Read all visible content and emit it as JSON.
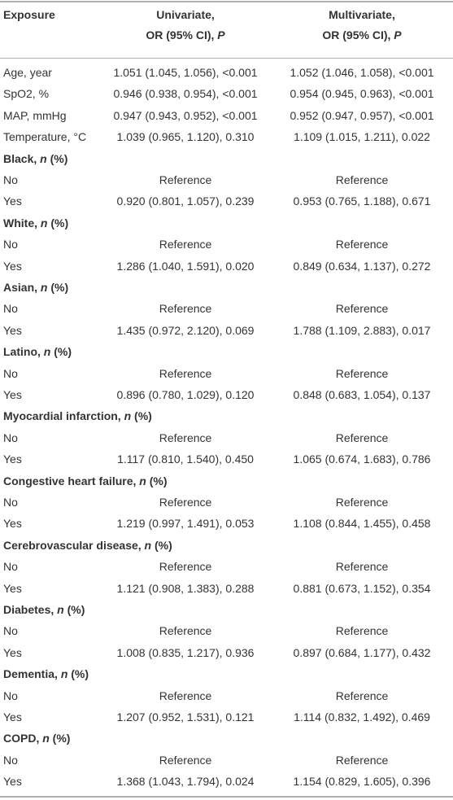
{
  "table": {
    "header": [
      {
        "lines": [
          [
            "Exposure"
          ]
        ]
      },
      {
        "lines": [
          [
            "Univariate,"
          ],
          [
            "OR (95% CI), ",
            "P"
          ]
        ]
      },
      {
        "lines": [
          [
            "Multivariate,"
          ],
          [
            "OR (95% CI), ",
            "P"
          ]
        ]
      }
    ],
    "rows": [
      {
        "label": "Age, year",
        "cells": [
          "1.051 (1.045, 1.056), <0.001",
          "1.052 (1.046, 1.058), <0.001"
        ]
      },
      {
        "label": "SpO2, %",
        "cells": [
          "0.946 (0.938, 0.954), <0.001",
          "0.954 (0.945, 0.963), <0.001"
        ]
      },
      {
        "label": "MAP, mmHg",
        "cells": [
          "0.947 (0.943, 0.952), <0.001",
          "0.952 (0.947, 0.957), <0.001"
        ]
      },
      {
        "label": "Temperature, °C",
        "cells": [
          "1.039 (0.965, 1.120), 0.310",
          "1.109 (1.015, 1.211), 0.022"
        ]
      },
      {
        "label_parts": [
          "Black, ",
          "n",
          " (%)"
        ]
      },
      {
        "label": "No",
        "cells": [
          "Reference",
          "Reference"
        ]
      },
      {
        "label": "Yes",
        "cells": [
          "0.920 (0.801, 1.057), 0.239",
          "0.953 (0.765, 1.188), 0.671"
        ]
      },
      {
        "label_parts": [
          "White, ",
          "n",
          " (%)"
        ]
      },
      {
        "label": "No",
        "cells": [
          "Reference",
          "Reference"
        ]
      },
      {
        "label": "Yes",
        "cells": [
          "1.286 (1.040, 1.591), 0.020",
          "0.849 (0.634, 1.137), 0.272"
        ]
      },
      {
        "label_parts": [
          "Asian, ",
          "n",
          " (%)"
        ]
      },
      {
        "label": "No",
        "cells": [
          "Reference",
          "Reference"
        ]
      },
      {
        "label": "Yes",
        "cells": [
          "1.435 (0.972, 2.120), 0.069",
          "1.788 (1.109, 2.883), 0.017"
        ]
      },
      {
        "label_parts": [
          "Latino, ",
          "n",
          " (%)"
        ]
      },
      {
        "label": "No",
        "cells": [
          "Reference",
          "Reference"
        ]
      },
      {
        "label": "Yes",
        "cells": [
          "0.896 (0.780, 1.029), 0.120",
          "0.848 (0.683, 1.054), 0.137"
        ]
      },
      {
        "label_parts": [
          "Myocardial infarction, ",
          "n",
          " (%)"
        ]
      },
      {
        "label": "No",
        "cells": [
          "Reference",
          "Reference"
        ]
      },
      {
        "label": "Yes",
        "cells": [
          "1.117 (0.810, 1.540), 0.450",
          "1.065 (0.674, 1.683), 0.786"
        ]
      },
      {
        "label_parts": [
          "Congestive heart failure, ",
          "n",
          " (%)"
        ]
      },
      {
        "label": "No",
        "cells": [
          "Reference",
          "Reference"
        ]
      },
      {
        "label": "Yes",
        "cells": [
          "1.219 (0.997, 1.491), 0.053",
          "1.108 (0.844, 1.455), 0.458"
        ]
      },
      {
        "label_parts": [
          "Cerebrovascular disease, ",
          "n",
          " (%)"
        ]
      },
      {
        "label": "No",
        "cells": [
          "Reference",
          "Reference"
        ]
      },
      {
        "label": "Yes",
        "cells": [
          "1.121 (0.908, 1.383), 0.288",
          "0.881 (0.673, 1.152), 0.354"
        ]
      },
      {
        "label_parts": [
          "Diabetes, ",
          "n",
          " (%)"
        ]
      },
      {
        "label": "No",
        "cells": [
          "Reference",
          "Reference"
        ]
      },
      {
        "label": "Yes",
        "cells": [
          "1.008 (0.835, 1.217), 0.936",
          "0.897 (0.684, 1.177), 0.432"
        ]
      },
      {
        "label_parts": [
          "Dementia, ",
          "n",
          " (%)"
        ]
      },
      {
        "label": "No",
        "cells": [
          "Reference",
          "Reference"
        ]
      },
      {
        "label": "Yes",
        "cells": [
          "1.207 (0.952, 1.531), 0.121",
          "1.114 (0.832, 1.492), 0.469"
        ]
      },
      {
        "label_parts": [
          "COPD, ",
          "n",
          " (%)"
        ]
      },
      {
        "label": "No",
        "cells": [
          "Reference",
          "Reference"
        ]
      },
      {
        "label": "Yes",
        "cells": [
          "1.368 (1.043, 1.794), 0.024",
          "1.154 (0.829, 1.605), 0.396"
        ]
      }
    ]
  }
}
